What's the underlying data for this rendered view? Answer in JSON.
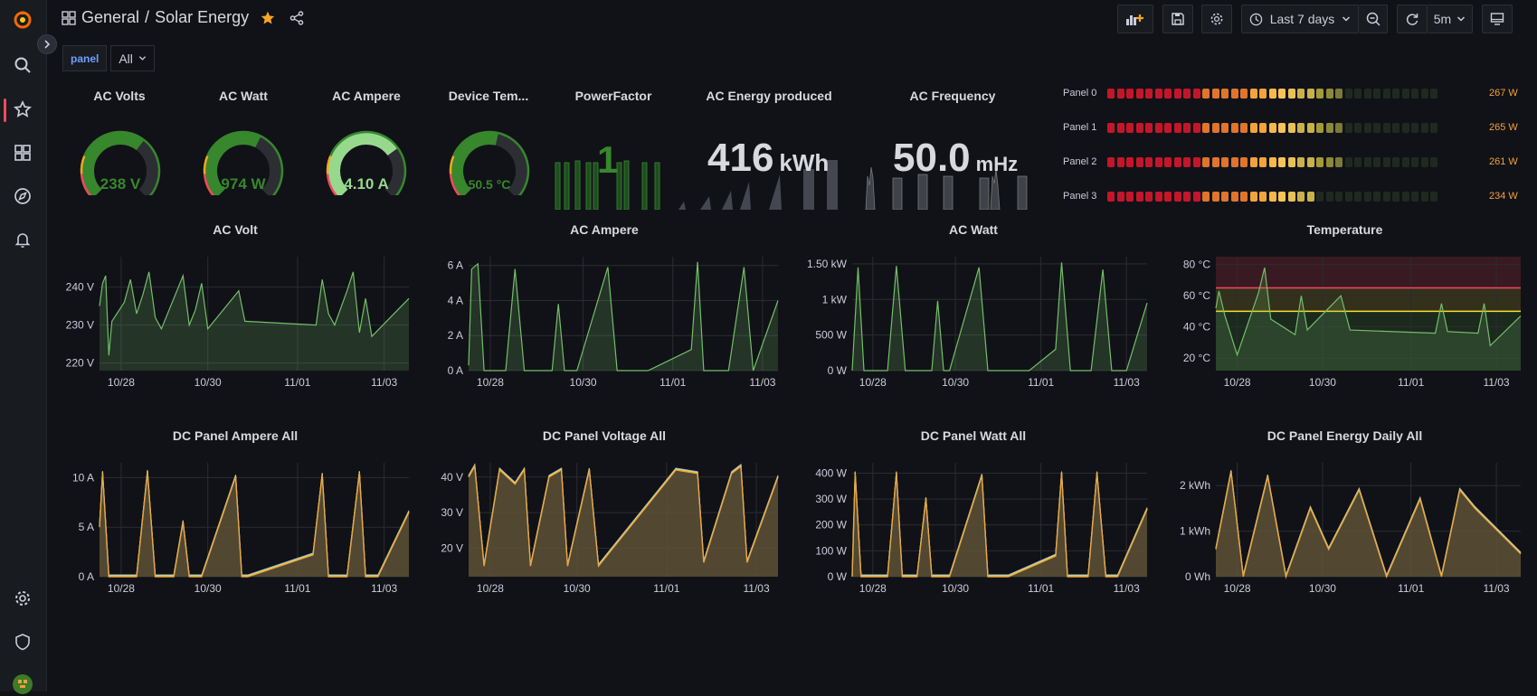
{
  "breadcrumb": {
    "folder": "General",
    "separator": "/",
    "title": "Solar Energy"
  },
  "toolbar": {
    "time_range": "Last 7 days",
    "refresh_interval": "5m"
  },
  "variables": {
    "label": "panel",
    "value": "All"
  },
  "stats": {
    "ac_volts": {
      "title": "AC Volts",
      "value": "238 V",
      "fraction": 0.64,
      "color": "#37872d"
    },
    "ac_watt": {
      "title": "AC Watt",
      "value": "974 W",
      "fraction": 0.6,
      "color": "#37872d"
    },
    "ac_ampere": {
      "title": "AC Ampere",
      "value": "4.10 A",
      "fraction": 0.7,
      "color": "#96d98d"
    },
    "device_temp": {
      "title": "Device Tem...",
      "value": "50.5 °C",
      "fraction": 0.55,
      "color": "#37872d"
    },
    "power_factor": {
      "title": "PowerFactor",
      "value": "1"
    },
    "ac_energy": {
      "title": "AC Energy produced",
      "value": "416",
      "unit": "kWh"
    },
    "ac_frequency": {
      "title": "AC Frequency",
      "value": "50.0",
      "unit": "mHz"
    }
  },
  "bargauge": {
    "rows": [
      {
        "label": "Panel 0",
        "value": "267 W",
        "fraction": 0.72
      },
      {
        "label": "Panel 1",
        "value": "265 W",
        "fraction": 0.71
      },
      {
        "label": "Panel 2",
        "value": "261 W",
        "fraction": 0.7
      },
      {
        "label": "Panel 3",
        "value": "234 W",
        "fraction": 0.62
      }
    ]
  },
  "chart_data": [
    {
      "type": "area",
      "title": "AC Volt",
      "ylabel": "",
      "ylim": [
        218,
        248
      ],
      "yticks": [
        "240 V",
        "230 V",
        "220 V"
      ],
      "ytick_values": [
        240,
        230,
        220
      ],
      "xticks": [
        "10/28",
        "10/30",
        "11/01",
        "11/03"
      ],
      "xtick_positions": [
        0.07,
        0.35,
        0.64,
        0.92
      ],
      "series": [
        {
          "name": "AC Volt",
          "color": "#73bf69",
          "values": [
            [
              0,
              235
            ],
            [
              0.01,
              241
            ],
            [
              0.02,
              243
            ],
            [
              0.03,
              222
            ],
            [
              0.04,
              231
            ],
            [
              0.08,
              236
            ],
            [
              0.1,
              242
            ],
            [
              0.12,
              233
            ],
            [
              0.14,
              238
            ],
            [
              0.16,
              244
            ],
            [
              0.18,
              232
            ],
            [
              0.2,
              229
            ],
            [
              0.25,
              239
            ],
            [
              0.27,
              243
            ],
            [
              0.29,
              230
            ],
            [
              0.31,
              234
            ],
            [
              0.33,
              241
            ],
            [
              0.35,
              229
            ],
            [
              0.45,
              239
            ],
            [
              0.47,
              231
            ],
            [
              0.7,
              230
            ],
            [
              0.72,
              242
            ],
            [
              0.74,
              233
            ],
            [
              0.76,
              230
            ],
            [
              0.8,
              239
            ],
            [
              0.82,
              244
            ],
            [
              0.84,
              228
            ],
            [
              0.86,
              237
            ],
            [
              0.88,
              227
            ],
            [
              1.0,
              237
            ]
          ]
        }
      ]
    },
    {
      "type": "area",
      "title": "AC Ampere",
      "ylabel": "",
      "ylim": [
        0,
        6.5
      ],
      "yticks": [
        "6 A",
        "4 A",
        "2 A",
        "0 A"
      ],
      "ytick_values": [
        6,
        4,
        2,
        0
      ],
      "xticks": [
        "10/28",
        "10/30",
        "11/01",
        "11/03"
      ],
      "xtick_positions": [
        0.07,
        0.37,
        0.66,
        0.95
      ],
      "series": [
        {
          "name": "AC Ampere",
          "color": "#73bf69",
          "values": [
            [
              0,
              0.3
            ],
            [
              0.01,
              5.8
            ],
            [
              0.03,
              6.1
            ],
            [
              0.05,
              0
            ],
            [
              0.12,
              0
            ],
            [
              0.15,
              5.8
            ],
            [
              0.18,
              0
            ],
            [
              0.27,
              0
            ],
            [
              0.29,
              3.8
            ],
            [
              0.31,
              0
            ],
            [
              0.35,
              0
            ],
            [
              0.45,
              5.9
            ],
            [
              0.48,
              0
            ],
            [
              0.58,
              0
            ],
            [
              0.72,
              1.2
            ],
            [
              0.74,
              6.2
            ],
            [
              0.76,
              0
            ],
            [
              0.84,
              0
            ],
            [
              0.89,
              5.9
            ],
            [
              0.92,
              0
            ],
            [
              1.0,
              4.0
            ]
          ]
        }
      ]
    },
    {
      "type": "area",
      "title": "AC Watt",
      "ylabel": "",
      "ylim": [
        0,
        1600
      ],
      "yticks": [
        "1.50 kW",
        "1 kW",
        "500 W",
        "0 W"
      ],
      "ytick_values": [
        1500,
        1000,
        500,
        0
      ],
      "xticks": [
        "10/28",
        "10/30",
        "11/01",
        "11/03"
      ],
      "xtick_positions": [
        0.07,
        0.35,
        0.64,
        0.93
      ],
      "series": [
        {
          "name": "AC Watt",
          "color": "#73bf69",
          "values": [
            [
              0,
              0
            ],
            [
              0.02,
              1450
            ],
            [
              0.04,
              0
            ],
            [
              0.12,
              0
            ],
            [
              0.15,
              1470
            ],
            [
              0.18,
              0
            ],
            [
              0.27,
              0
            ],
            [
              0.29,
              980
            ],
            [
              0.31,
              0
            ],
            [
              0.33,
              0
            ],
            [
              0.43,
              1450
            ],
            [
              0.46,
              0
            ],
            [
              0.6,
              0
            ],
            [
              0.69,
              300
            ],
            [
              0.71,
              1520
            ],
            [
              0.74,
              0
            ],
            [
              0.81,
              0
            ],
            [
              0.85,
              1420
            ],
            [
              0.88,
              0
            ],
            [
              0.93,
              0
            ],
            [
              1.0,
              950
            ]
          ]
        }
      ]
    },
    {
      "type": "area",
      "title": "Temperature",
      "ylabel": "",
      "ylim": [
        12,
        85
      ],
      "yticks": [
        "80 °C",
        "60 °C",
        "40 °C",
        "20 °C"
      ],
      "ytick_values": [
        80,
        60,
        40,
        20
      ],
      "xticks": [
        "10/28",
        "10/30",
        "11/01",
        "11/03"
      ],
      "xtick_positions": [
        0.07,
        0.35,
        0.64,
        0.92
      ],
      "thresholds": [
        {
          "value": 65,
          "color": "#f2495c"
        },
        {
          "value": 50,
          "color": "#fade2a"
        }
      ],
      "series": [
        {
          "name": "Temperature",
          "color": "#73bf69",
          "values": [
            [
              0,
              52
            ],
            [
              0.01,
              63
            ],
            [
              0.03,
              47
            ],
            [
              0.07,
              22
            ],
            [
              0.14,
              62
            ],
            [
              0.16,
              78
            ],
            [
              0.18,
              45
            ],
            [
              0.26,
              35
            ],
            [
              0.28,
              60
            ],
            [
              0.3,
              38
            ],
            [
              0.41,
              60
            ],
            [
              0.44,
              38
            ],
            [
              0.72,
              36
            ],
            [
              0.74,
              55
            ],
            [
              0.76,
              37
            ],
            [
              0.86,
              36
            ],
            [
              0.88,
              55
            ],
            [
              0.9,
              28
            ],
            [
              1.0,
              47
            ]
          ]
        }
      ]
    },
    {
      "type": "area",
      "title": "DC Panel Ampere All",
      "ylabel": "",
      "ylim": [
        0,
        11.5
      ],
      "yticks": [
        "10 A",
        "5 A",
        "0 A"
      ],
      "ytick_values": [
        10,
        5,
        0
      ],
      "xticks": [
        "10/28",
        "10/30",
        "11/01",
        "11/03"
      ],
      "xtick_positions": [
        0.07,
        0.35,
        0.64,
        0.92
      ],
      "series": [
        {
          "name": "Panel",
          "color": "#e5a64a",
          "values": [
            [
              0,
              5
            ],
            [
              0.01,
              10.5
            ],
            [
              0.03,
              0
            ],
            [
              0.12,
              0
            ],
            [
              0.155,
              10.6
            ],
            [
              0.18,
              0
            ],
            [
              0.24,
              0
            ],
            [
              0.27,
              5.5
            ],
            [
              0.29,
              0
            ],
            [
              0.33,
              0
            ],
            [
              0.44,
              10.1
            ],
            [
              0.46,
              0
            ],
            [
              0.48,
              0
            ],
            [
              0.69,
              2.2
            ],
            [
              0.72,
              10.3
            ],
            [
              0.74,
              0
            ],
            [
              0.8,
              0
            ],
            [
              0.84,
              10.5
            ],
            [
              0.86,
              0
            ],
            [
              0.9,
              0
            ],
            [
              1.0,
              6.5
            ]
          ]
        }
      ]
    },
    {
      "type": "area",
      "title": "DC Panel Voltage All",
      "ylabel": "",
      "ylim": [
        12,
        44
      ],
      "yticks": [
        "40 V",
        "30 V",
        "20 V"
      ],
      "ytick_values": [
        40,
        30,
        20
      ],
      "xticks": [
        "10/28",
        "10/30",
        "11/01",
        "11/03"
      ],
      "xtick_positions": [
        0.07,
        0.35,
        0.64,
        0.93
      ],
      "series": [
        {
          "name": "Panel",
          "color": "#e5a64a",
          "values": [
            [
              0,
              40
            ],
            [
              0.02,
              43
            ],
            [
              0.05,
              15
            ],
            [
              0.1,
              42
            ],
            [
              0.15,
              38
            ],
            [
              0.18,
              42
            ],
            [
              0.2,
              15
            ],
            [
              0.26,
              40
            ],
            [
              0.3,
              42
            ],
            [
              0.32,
              15
            ],
            [
              0.39,
              42
            ],
            [
              0.42,
              15
            ],
            [
              0.67,
              42
            ],
            [
              0.74,
              41
            ],
            [
              0.76,
              16
            ],
            [
              0.85,
              41
            ],
            [
              0.88,
              43
            ],
            [
              0.9,
              16
            ],
            [
              1.0,
              40
            ]
          ]
        }
      ]
    },
    {
      "type": "area",
      "title": "DC Panel Watt All",
      "ylabel": "",
      "ylim": [
        0,
        440
      ],
      "yticks": [
        "400 W",
        "300 W",
        "200 W",
        "100 W",
        "0 W"
      ],
      "ytick_values": [
        400,
        300,
        200,
        100,
        0
      ],
      "xticks": [
        "10/28",
        "10/30",
        "11/01",
        "11/03"
      ],
      "xtick_positions": [
        0.07,
        0.35,
        0.64,
        0.93
      ],
      "series": [
        {
          "name": "Panel",
          "color": "#e5a64a",
          "values": [
            [
              0,
              0
            ],
            [
              0.01,
              400
            ],
            [
              0.03,
              0
            ],
            [
              0.12,
              0
            ],
            [
              0.15,
              400
            ],
            [
              0.17,
              0
            ],
            [
              0.22,
              0
            ],
            [
              0.25,
              300
            ],
            [
              0.27,
              0
            ],
            [
              0.33,
              0
            ],
            [
              0.44,
              390
            ],
            [
              0.46,
              0
            ],
            [
              0.53,
              0
            ],
            [
              0.69,
              80
            ],
            [
              0.71,
              400
            ],
            [
              0.73,
              0
            ],
            [
              0.8,
              0
            ],
            [
              0.83,
              400
            ],
            [
              0.86,
              0
            ],
            [
              0.9,
              0
            ],
            [
              1.0,
              260
            ]
          ]
        }
      ]
    },
    {
      "type": "area",
      "title": "DC Panel Energy Daily All",
      "ylabel": "",
      "ylim": [
        0,
        2.5
      ],
      "yticks": [
        "2 kWh",
        "1 kWh",
        "0 Wh"
      ],
      "ytick_values": [
        2,
        1,
        0
      ],
      "xticks": [
        "10/28",
        "10/30",
        "11/01",
        "11/03"
      ],
      "xtick_positions": [
        0.07,
        0.35,
        0.64,
        0.92
      ],
      "series": [
        {
          "name": "Panel",
          "color": "#e5a64a",
          "values": [
            [
              0,
              0.6
            ],
            [
              0.05,
              2.3
            ],
            [
              0.09,
              0
            ],
            [
              0.17,
              2.2
            ],
            [
              0.23,
              0
            ],
            [
              0.31,
              1.5
            ],
            [
              0.37,
              0.6
            ],
            [
              0.47,
              1.9
            ],
            [
              0.56,
              0
            ],
            [
              0.67,
              1.7
            ],
            [
              0.74,
              0
            ],
            [
              0.8,
              1.9
            ],
            [
              0.85,
              1.5
            ],
            [
              1.0,
              0.5
            ]
          ]
        }
      ]
    }
  ]
}
